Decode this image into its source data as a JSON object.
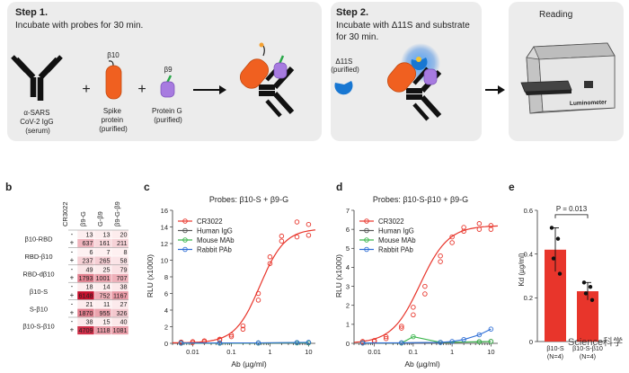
{
  "top": {
    "step1": {
      "title": "Step 1.",
      "subtitle": "Incubate with probes for 30 min.",
      "antibody_label_lines": [
        "α-SARS",
        "CoV-2 IgG",
        "(serum)"
      ],
      "spike_tag": "β10",
      "spike_label_lines": [
        "Spike",
        "protein",
        "(purified)"
      ],
      "proteing_tag": "β9",
      "proteing_label_lines": [
        "Protein G",
        "(purified)"
      ],
      "plus": "+"
    },
    "step2": {
      "title": "Step 2.",
      "subtitle_lines": [
        "Incubate with Δ11S and substrate",
        "for 30 min."
      ],
      "reagent_label_lines": [
        "Δ11S",
        "(purified)"
      ]
    },
    "reading": {
      "title": "Reading",
      "device_label": "Luminometer"
    }
  },
  "panel_b": {
    "letter": "b",
    "columns": [
      "CR3022",
      "β9-G",
      "G-β9",
      "β9-G-β9"
    ],
    "rows": [
      {
        "name": "β10-RBD",
        "minus": [
          13,
          13,
          20
        ],
        "plus": [
          637,
          161,
          211
        ]
      },
      {
        "name": "RBD-β10",
        "minus": [
          6,
          7,
          8
        ],
        "plus": [
          237,
          265,
          58
        ]
      },
      {
        "name": "RBD-dβ10",
        "minus": [
          49,
          25,
          79
        ],
        "plus": [
          1793,
          1001,
          707
        ]
      },
      {
        "name": "β10-S",
        "minus": [
          18,
          14,
          38
        ],
        "plus": [
          6148,
          752,
          1167
        ]
      },
      {
        "name": "S-β10",
        "minus": [
          21,
          11,
          27
        ],
        "plus": [
          1870,
          955,
          326
        ]
      },
      {
        "name": "β10-S-β10",
        "minus": [
          38,
          15,
          40
        ],
        "plus": [
          4709,
          1118,
          1081
        ]
      }
    ],
    "minus_sign": "-",
    "plus_sign": "+"
  },
  "panel_c": {
    "letter": "c",
    "title": "Probes: β10-S + β9-G",
    "ylabel": "RLU (x1000)",
    "xlabel": "Ab (µg/ml)",
    "legend": [
      "CR3022",
      "Human IgG",
      "Mouse MAb",
      "Rabbit PAb"
    ]
  },
  "panel_d": {
    "letter": "d",
    "title": "Probes: β10-S-β10 + β9-G",
    "ylabel": "RLU (x1000)",
    "xlabel": "Ab (µg/ml)",
    "legend": [
      "CR3022",
      "Human IgG",
      "Mouse MAb",
      "Rabbit PAb"
    ]
  },
  "panel_e": {
    "letter": "e",
    "ylabel": "Kd (µg/ml)",
    "pvalue": "P = 0.013",
    "categories_lines": [
      [
        "β10-S",
        "(N=4)"
      ],
      [
        "β10-S-β10",
        "(N=4)"
      ]
    ]
  },
  "watermark": "Science科学",
  "colors": {
    "cr3022": "#e8352b",
    "human": "#555555",
    "mouse": "#39b54a",
    "rabbit": "#2f6fd6",
    "heat": "#c8102e"
  },
  "chart_data": [
    {
      "type": "line",
      "title": "Probes: β10-S + β9-G",
      "xlabel": "Ab (µg/ml)",
      "ylabel": "RLU (x1000)",
      "xscale": "log",
      "xlim": [
        0.003,
        15
      ],
      "ylim": [
        0,
        16
      ],
      "xticks": [
        0.01,
        0.1,
        1,
        10
      ],
      "xtick_labels": [
        "0.01",
        "0.1",
        "1",
        "10"
      ],
      "yticks": [
        0,
        2,
        4,
        6,
        8,
        10,
        12,
        14,
        16
      ],
      "series": [
        {
          "name": "CR3022",
          "color_key": "cr3022",
          "x": [
            0.005,
            0.005,
            0.01,
            0.01,
            0.02,
            0.02,
            0.05,
            0.05,
            0.1,
            0.1,
            0.2,
            0.2,
            0.5,
            0.5,
            1,
            1,
            2,
            2,
            5,
            5,
            10,
            10
          ],
          "y": [
            0.1,
            0.15,
            0.2,
            0.1,
            0.3,
            0.2,
            0.5,
            0.4,
            1.0,
            0.8,
            2.1,
            1.7,
            6.0,
            5.2,
            10.4,
            9.6,
            12.9,
            12.3,
            14.6,
            12.8,
            14.3,
            13.0
          ],
          "fit": {
            "bottom": 0.05,
            "top": 13.8,
            "ec50": 0.55,
            "hill": 1.35
          }
        },
        {
          "name": "Human IgG",
          "color_key": "human",
          "x": [
            0.005,
            0.05,
            0.5,
            5,
            10
          ],
          "y": [
            0.05,
            0.05,
            0.05,
            0.08,
            0.08
          ]
        },
        {
          "name": "Mouse MAb",
          "color_key": "mouse",
          "x": [
            0.005,
            0.05,
            0.5,
            5,
            10
          ],
          "y": [
            0.02,
            0.02,
            0.03,
            0.05,
            0.06
          ]
        },
        {
          "name": "Rabbit PAb",
          "color_key": "rabbit",
          "x": [
            0.005,
            0.05,
            0.5,
            5,
            10
          ],
          "y": [
            0.03,
            0.04,
            0.05,
            0.1,
            0.12
          ]
        }
      ]
    },
    {
      "type": "line",
      "title": "Probes: β10-S-β10 + β9-G",
      "xlabel": "Ab (µg/ml)",
      "ylabel": "RLU (x1000)",
      "xscale": "log",
      "xlim": [
        0.003,
        15
      ],
      "ylim": [
        0,
        7
      ],
      "xticks": [
        0.01,
        0.1,
        1,
        10
      ],
      "xtick_labels": [
        "0.01",
        "0.1",
        "1",
        "10"
      ],
      "yticks": [
        0,
        1,
        2,
        3,
        4,
        5,
        6,
        7
      ],
      "series": [
        {
          "name": "CR3022",
          "color_key": "cr3022",
          "x": [
            0.005,
            0.005,
            0.01,
            0.01,
            0.02,
            0.02,
            0.05,
            0.05,
            0.1,
            0.1,
            0.2,
            0.2,
            0.5,
            0.5,
            1,
            1,
            2,
            2,
            5,
            5,
            10,
            10
          ],
          "y": [
            0.05,
            0.1,
            0.15,
            0.1,
            0.35,
            0.25,
            0.9,
            0.8,
            1.9,
            1.5,
            3.0,
            2.6,
            4.6,
            4.3,
            5.6,
            5.3,
            6.1,
            5.9,
            6.3,
            6.0,
            6.2,
            6.0
          ],
          "fit": {
            "bottom": 0.0,
            "top": 6.2,
            "ec50": 0.15,
            "hill": 1.2
          }
        },
        {
          "name": "Human IgG",
          "color_key": "human",
          "x": [
            0.005,
            0.05,
            0.5,
            5,
            10
          ],
          "y": [
            0.02,
            0.02,
            0.05,
            0.08,
            0.1
          ]
        },
        {
          "name": "Mouse MAb",
          "color_key": "mouse",
          "x": [
            0.005,
            0.05,
            0.1,
            0.5,
            5,
            10
          ],
          "y": [
            0.02,
            0.02,
            0.35,
            0.05,
            0.08,
            0.1
          ]
        },
        {
          "name": "Rabbit PAb",
          "color_key": "rabbit",
          "x": [
            0.005,
            0.05,
            0.5,
            1,
            2,
            5,
            10
          ],
          "y": [
            0.02,
            0.03,
            0.05,
            0.1,
            0.2,
            0.45,
            0.75
          ]
        }
      ]
    },
    {
      "type": "bar",
      "title": "",
      "xlabel": "",
      "ylabel": "Kd (µg/ml)",
      "categories": [
        "β10-S (N=4)",
        "β10-S-β10 (N=4)"
      ],
      "values": [
        0.42,
        0.23
      ],
      "errors": [
        0.1,
        0.04
      ],
      "points": [
        [
          0.52,
          0.47,
          0.38,
          0.31
        ],
        [
          0.27,
          0.25,
          0.22,
          0.19
        ]
      ],
      "ylim": [
        0,
        0.6
      ],
      "yticks": [
        0,
        0.2,
        0.4,
        0.6
      ],
      "annotation": "P = 0.013"
    }
  ]
}
